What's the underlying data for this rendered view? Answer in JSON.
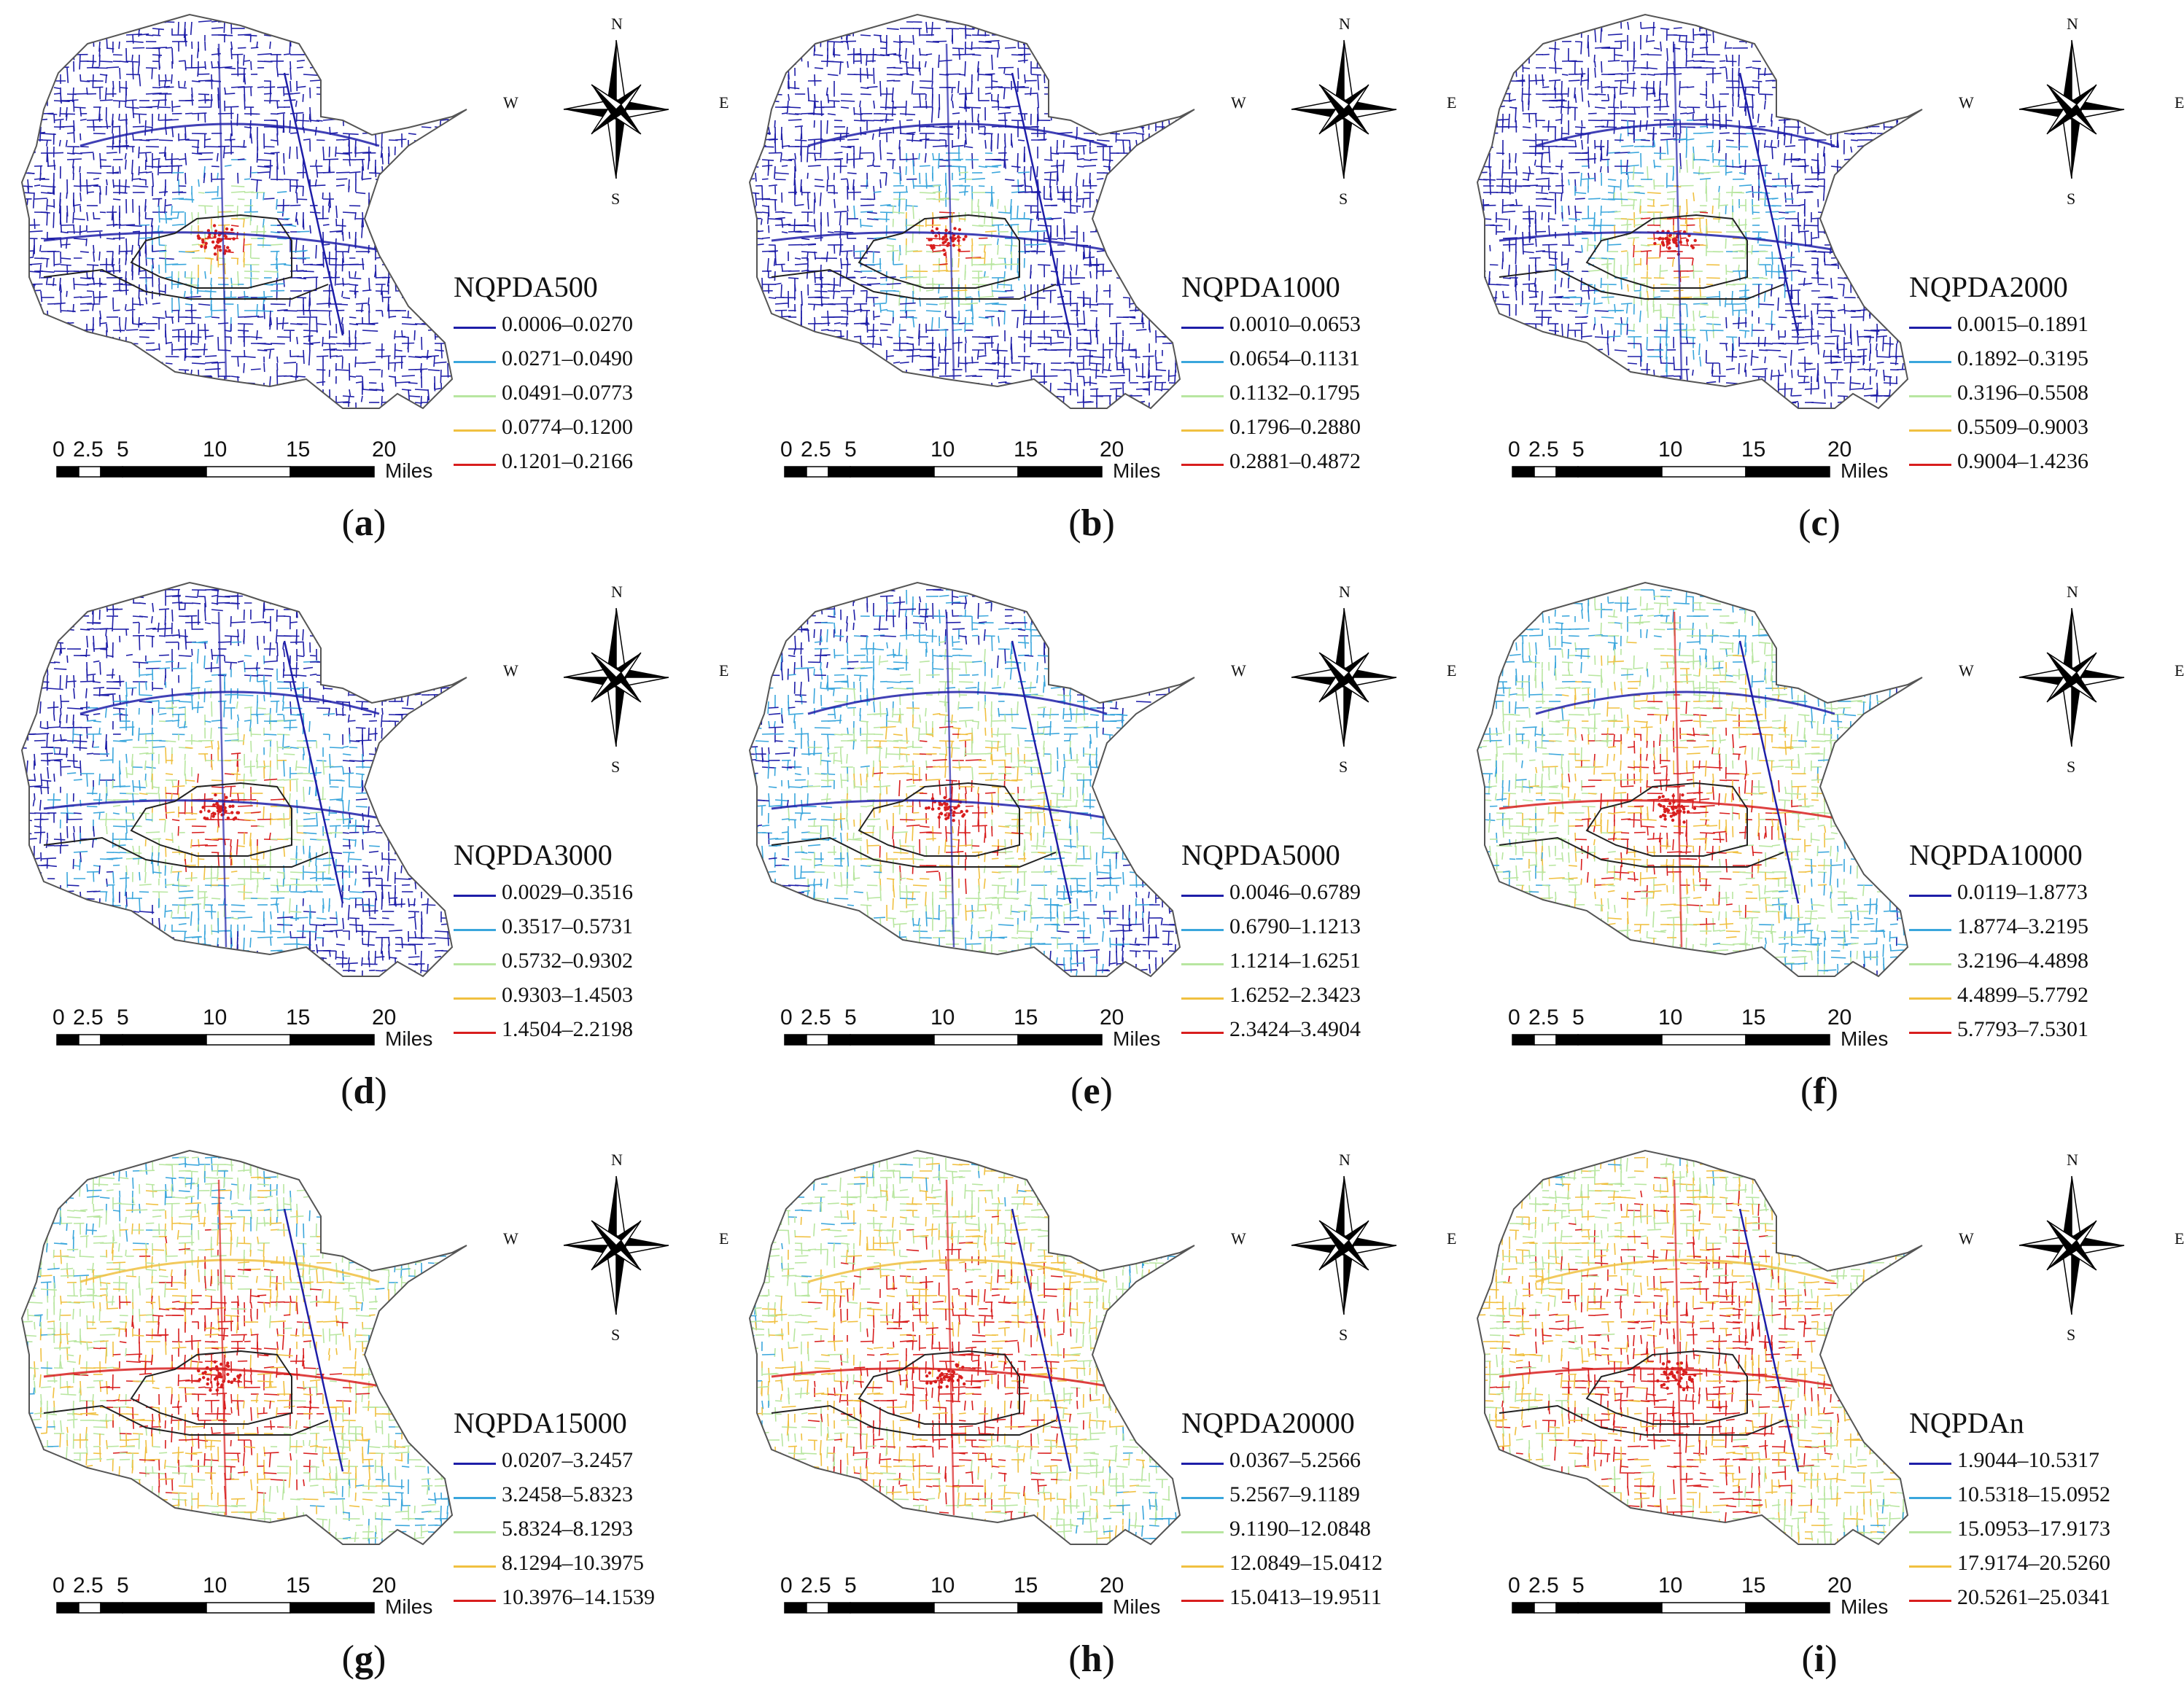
{
  "compass": {
    "n": "N",
    "s": "S",
    "e": "E",
    "w": "W"
  },
  "scale": {
    "ticks": [
      "0",
      "2.5",
      "5",
      "10",
      "15",
      "20"
    ],
    "unit": "Miles"
  },
  "colors": [
    "#1e1ea8",
    "#3aa6dc",
    "#b8e6a0",
    "#f0c040",
    "#d81e1e"
  ],
  "panels": [
    {
      "letter": "a",
      "title": "NQPDA500",
      "classes": [
        "0.0006–0.0270",
        "0.0271–0.0490",
        "0.0491–0.0773",
        "0.0774–0.1200",
        "0.1201–0.2166"
      ],
      "spread": 0.05
    },
    {
      "letter": "b",
      "title": "NQPDA1000",
      "classes": [
        "0.0010–0.0653",
        "0.0654–0.1131",
        "0.1132–0.1795",
        "0.1796–0.2880",
        "0.2881–0.4872"
      ],
      "spread": 0.07
    },
    {
      "letter": "c",
      "title": "NQPDA2000",
      "classes": [
        "0.0015–0.1891",
        "0.1892–0.3195",
        "0.3196–0.5508",
        "0.5509–0.9003",
        "0.9004–1.4236"
      ],
      "spread": 0.1
    },
    {
      "letter": "d",
      "title": "NQPDA3000",
      "classes": [
        "0.0029–0.3516",
        "0.3517–0.5731",
        "0.5732–0.9302",
        "0.9303–1.4503",
        "1.4504–2.2198"
      ],
      "spread": 0.15
    },
    {
      "letter": "e",
      "title": "NQPDA5000",
      "classes": [
        "0.0046–0.6789",
        "0.6790–1.1213",
        "1.1214–1.6251",
        "1.6252–2.3423",
        "2.3424–3.4904"
      ],
      "spread": 0.22
    },
    {
      "letter": "f",
      "title": "NQPDA10000",
      "classes": [
        "0.0119–1.8773",
        "1.8774–3.2195",
        "3.2196–4.4898",
        "4.4899–5.7792",
        "5.7793–7.5301"
      ],
      "spread": 0.34
    },
    {
      "letter": "g",
      "title": "NQPDA15000",
      "classes": [
        "0.0207–3.2457",
        "3.2458–5.8323",
        "5.8324–8.1293",
        "8.1294–10.3975",
        "10.3976–14.1539"
      ],
      "spread": 0.42
    },
    {
      "letter": "h",
      "title": "NQPDA20000",
      "classes": [
        "0.0367–5.2566",
        "5.2567–9.1189",
        "9.1190–12.0848",
        "12.0849–15.0412",
        "15.0413–19.9511"
      ],
      "spread": 0.48
    },
    {
      "letter": "i",
      "title": "NQPDAn",
      "classes": [
        "1.9044–10.5317",
        "10.5318–15.0952",
        "15.0953–17.9173",
        "17.9174–20.5260",
        "20.5261–25.0341"
      ],
      "spread": 0.58
    }
  ]
}
